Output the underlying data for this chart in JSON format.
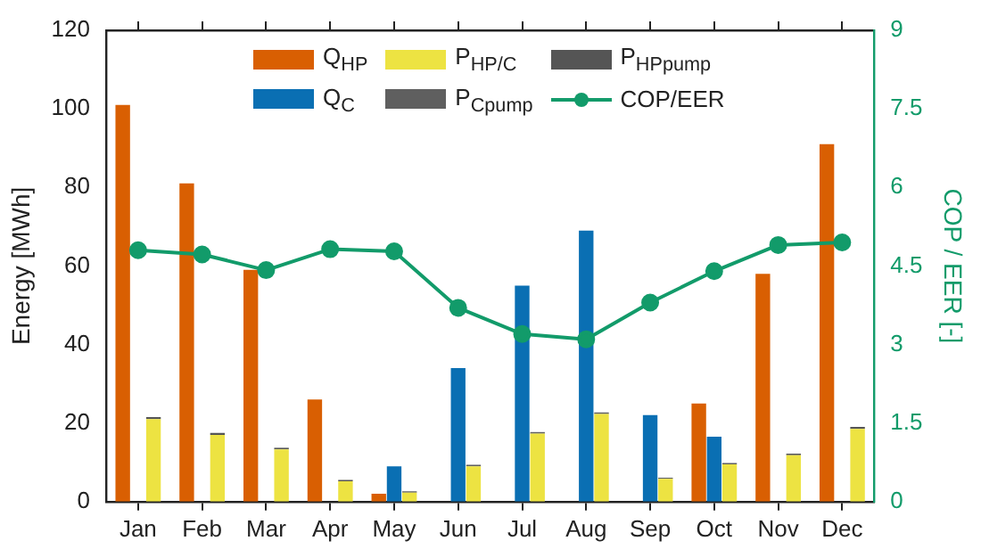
{
  "chart_data": {
    "type": "bar",
    "ylabel": "Energy [MWh]",
    "y2label": "COP / EER [-]",
    "categories": [
      "Jan",
      "Feb",
      "Mar",
      "Apr",
      "May",
      "Jun",
      "Jul",
      "Aug",
      "Sep",
      "Oct",
      "Nov",
      "Dec"
    ],
    "series": [
      {
        "name": "Q$_{HP}$",
        "color": "#d95f02",
        "values": [
          101,
          81,
          59,
          26,
          2,
          null,
          null,
          null,
          null,
          25,
          58,
          91
        ]
      },
      {
        "name": "Q$_{C}$",
        "color": "#0a6fb3",
        "values": [
          null,
          null,
          null,
          null,
          9,
          34,
          55,
          69,
          22,
          16.5,
          null,
          null
        ]
      },
      {
        "name": "P$_{HP/C}$",
        "color": "#ede342",
        "values": [
          21,
          17,
          13.3,
          5.2,
          2.3,
          9,
          17.3,
          22.3,
          5.8,
          9.5,
          11.8,
          18.5
        ]
      },
      {
        "name": "P$_{Cpump}$",
        "color": "#5f5f5f",
        "base": [
          null,
          null,
          null,
          null,
          2.3,
          9,
          17.3,
          22.3,
          5.8,
          9.5,
          null,
          null
        ],
        "values": [
          null,
          null,
          null,
          null,
          0.3,
          0.4,
          0.4,
          0.4,
          0.3,
          0.3,
          null,
          null
        ]
      },
      {
        "name": "P$_{HPpump}$",
        "color": "#555555",
        "base": [
          21,
          17,
          13.3,
          5.2,
          null,
          null,
          null,
          null,
          null,
          null,
          11.8,
          18.5
        ],
        "values": [
          0.5,
          0.5,
          0.4,
          0.3,
          null,
          null,
          null,
          null,
          null,
          null,
          0.4,
          0.5
        ]
      },
      {
        "name": "COP/EER",
        "color": "#129b6a",
        "type": "line",
        "axis": "y2",
        "marker": "circle",
        "values": [
          4.8,
          4.72,
          4.42,
          4.82,
          4.78,
          3.7,
          3.2,
          3.1,
          3.8,
          4.4,
          4.9,
          4.95
        ]
      }
    ],
    "ylim": [
      0,
      120
    ],
    "yticks": [
      0,
      20,
      40,
      60,
      80,
      100,
      120
    ],
    "y2lim": [
      0,
      9
    ],
    "y2ticks": [
      0,
      1.5,
      3,
      4.5,
      6,
      7.5,
      9
    ],
    "grid": false,
    "legend": "top"
  }
}
